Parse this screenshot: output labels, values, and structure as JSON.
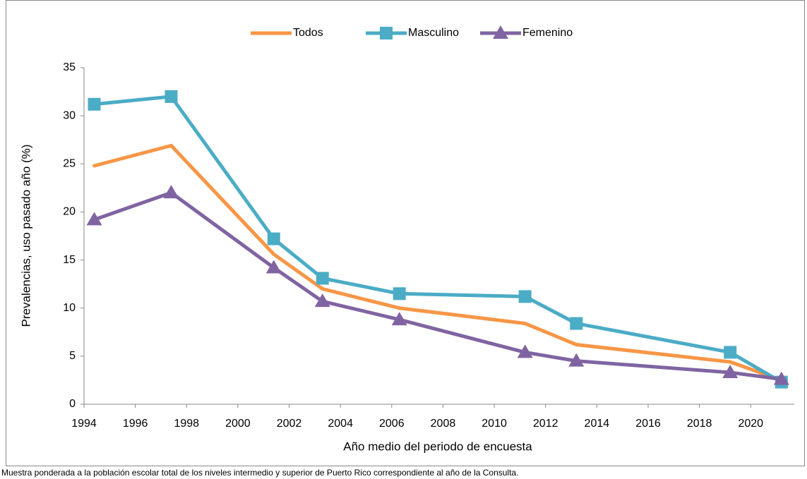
{
  "chart_data": {
    "type": "line",
    "x_label": "Año medio del periodo de encuesta",
    "y_label": "Prevalencias, uso pasado año (%)",
    "note": "Muestra ponderada a la población escolar total de los niveles intermedio y superior de Puerto Rico correspondiente al año de la Consulta.",
    "x": [
      1994.4,
      1997.4,
      2001.4,
      2003.3,
      2006.3,
      2011.2,
      2013.2,
      2019.2,
      2021.2
    ],
    "series": [
      {
        "name": "Todos",
        "color": "#f79646",
        "values": [
          24.8,
          26.9,
          15.6,
          12.0,
          10.0,
          8.4,
          6.2,
          4.4,
          2.5
        ]
      },
      {
        "name": "Masculino",
        "color": "#4bacc6",
        "marker": "square",
        "values": [
          31.2,
          32.0,
          17.2,
          13.1,
          11.5,
          11.2,
          8.4,
          5.4,
          2.3
        ]
      },
      {
        "name": "Femenino",
        "color": "#8064a2",
        "marker": "triangle",
        "values": [
          19.2,
          22.0,
          14.2,
          10.7,
          8.8,
          5.4,
          4.5,
          3.3,
          2.6
        ]
      }
    ],
    "xlim": [
      1994,
      2021.7
    ],
    "xticks": [
      1994,
      1996,
      1998,
      2000,
      2002,
      2004,
      2006,
      2008,
      2010,
      2012,
      2014,
      2016,
      2018,
      2020
    ],
    "ylim": [
      0,
      35
    ],
    "yticks": [
      0,
      5,
      10,
      15,
      20,
      25,
      30,
      35
    ],
    "grid": false,
    "legend": "top"
  }
}
